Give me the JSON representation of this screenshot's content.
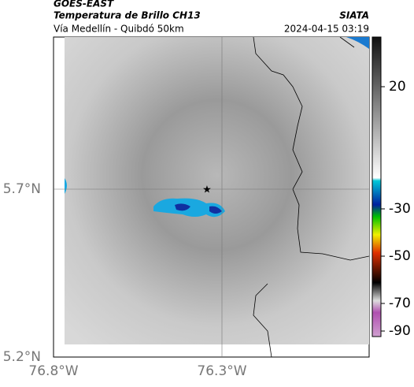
{
  "header": {
    "source": "GOES-EAST",
    "title": "Temperatura de Brillo CH13",
    "agency": "SIATA",
    "subtitle": "Vía Medellín - Quibdó 50km",
    "timestamp": "2024-04-15 03:19"
  },
  "axes": {
    "latitude_labels": [
      "5.7°N",
      "5.2°N"
    ],
    "longitude_labels": [
      "76.8°W",
      "76.3°W"
    ]
  },
  "colorbar": {
    "ticks": [
      20,
      -30,
      -50,
      -70,
      -90
    ]
  }
}
